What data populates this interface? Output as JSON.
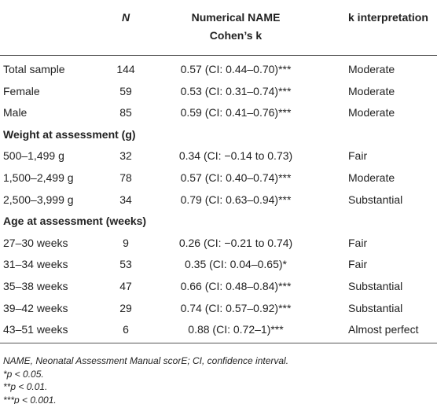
{
  "table": {
    "header": {
      "n": "N",
      "kappa_line1": "Numerical NAME",
      "kappa_line2": "Cohen’s k",
      "interpretation": "k interpretation"
    },
    "rows": [
      [
        "Total sample",
        "144",
        "0.57 (CI: 0.44–0.70)***",
        "Moderate"
      ],
      [
        "Female",
        "59",
        "0.53 (CI: 0.31–0.74)***",
        "Moderate"
      ],
      [
        "Male",
        "85",
        "0.59 (CI: 0.41–0.76)***",
        "Moderate"
      ],
      [
        "Weight at assessment (g)"
      ],
      [
        "500–1,499 g",
        "32",
        "0.34 (CI: −0.14 to 0.73)",
        "Fair"
      ],
      [
        "1,500–2,499 g",
        "78",
        "0.57 (CI: 0.40–0.74)***",
        "Moderate"
      ],
      [
        "2,500–3,999 g",
        "34",
        "0.79 (CI: 0.63–0.94)***",
        "Substantial"
      ],
      [
        "Age at assessment (weeks)"
      ],
      [
        "27–30 weeks",
        "9",
        "0.26 (CI: −0.21 to 0.74)",
        "Fair"
      ],
      [
        "31–34 weeks",
        "53",
        "0.35 (CI: 0.04–0.65)*",
        "Fair"
      ],
      [
        "35–38 weeks",
        "47",
        "0.66 (CI: 0.48–0.84)***",
        "Substantial"
      ],
      [
        "39–42 weeks",
        "29",
        "0.74 (CI: 0.57–0.92)***",
        "Substantial"
      ],
      [
        "43–51 weeks",
        "6",
        "0.88 (CI: 0.72–1)***",
        "Almost perfect"
      ]
    ]
  },
  "footnotes": [
    "NAME, Neonatal Assessment Manual scorE; CI, confidence interval.",
    "*p < 0.05.",
    "**p < 0.01.",
    "***p < 0.001."
  ]
}
